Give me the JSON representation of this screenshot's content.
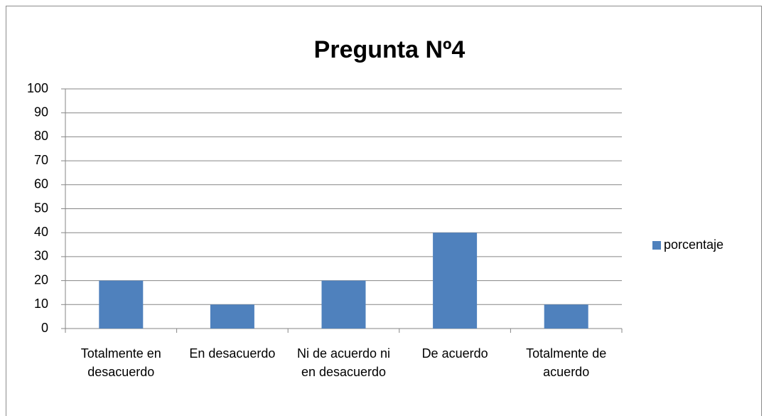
{
  "chart_data": {
    "type": "bar",
    "title": "Pregunta Nº4",
    "categories": [
      "Totalmente en desacuerdo",
      "En desacuerdo",
      "Ni de acuerdo ni en desacuerdo",
      "De acuerdo",
      "Totalmente de acuerdo"
    ],
    "series": [
      {
        "name": "porcentaje",
        "color": "#4f81bd",
        "values": [
          20,
          10,
          20,
          40,
          10
        ]
      }
    ],
    "ylim": [
      0,
      100
    ],
    "yticks": [
      0,
      10,
      20,
      30,
      40,
      50,
      60,
      70,
      80,
      90,
      100
    ],
    "grid": true,
    "legend": "right"
  }
}
